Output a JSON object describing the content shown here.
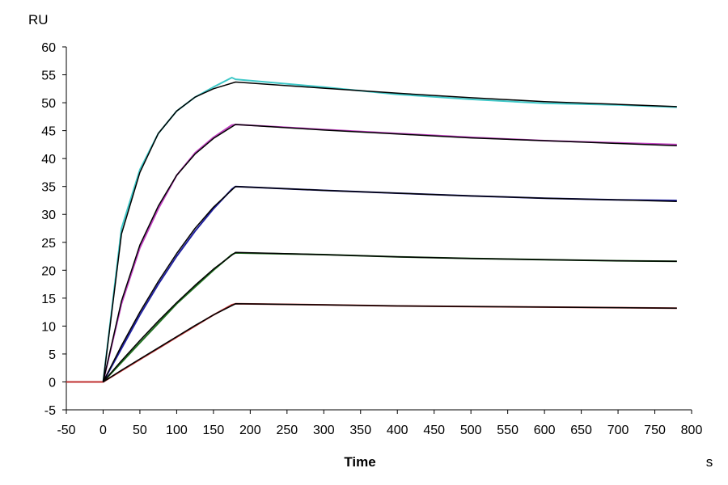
{
  "chart_data": {
    "type": "line",
    "title": "",
    "xlabel": "Time",
    "xunit": "s",
    "ylabel": "RU",
    "xlim": [
      -50,
      800
    ],
    "ylim": [
      -5,
      60
    ],
    "xticks": [
      -50,
      0,
      50,
      100,
      150,
      200,
      250,
      300,
      350,
      400,
      450,
      500,
      550,
      600,
      650,
      700,
      750,
      800
    ],
    "yticks": [
      -5,
      0,
      5,
      10,
      15,
      20,
      25,
      30,
      35,
      40,
      45,
      50,
      55,
      60
    ],
    "xtick_labels": [
      "-50",
      "0",
      "50",
      "100",
      "150",
      "200",
      "250",
      "300",
      "350",
      "400",
      "450",
      "500",
      "550",
      "600",
      "650",
      "700",
      "750",
      "800"
    ],
    "ytick_labels": [
      "-5",
      "0",
      "5",
      "10",
      "15",
      "20",
      "25",
      "30",
      "35",
      "40",
      "45",
      "50",
      "55",
      "60"
    ],
    "grid": false,
    "legend": "none",
    "series": [
      {
        "color": "#3fc8c8",
        "x": [
          -50,
          0,
          25,
          50,
          75,
          100,
          125,
          150,
          175,
          180,
          300,
          400,
          500,
          600,
          700,
          780
        ],
        "y": [
          0,
          0,
          27.5,
          38,
          44.5,
          48.5,
          51,
          52.8,
          54.5,
          54.2,
          52.8,
          51.5,
          50.6,
          49.9,
          49.6,
          49.2
        ]
      },
      {
        "color": "#c040c0",
        "x": [
          -50,
          0,
          25,
          50,
          75,
          100,
          125,
          150,
          175,
          180,
          300,
          400,
          500,
          600,
          700,
          780
        ],
        "y": [
          0,
          0,
          14,
          24,
          31,
          37,
          41,
          43.8,
          46,
          46.1,
          45.2,
          44.5,
          43.8,
          43.2,
          42.8,
          42.5
        ]
      },
      {
        "color": "#2020a0",
        "x": [
          -50,
          0,
          25,
          50,
          75,
          100,
          125,
          150,
          175,
          180,
          300,
          400,
          500,
          600,
          700,
          780
        ],
        "y": [
          0,
          0,
          6,
          12,
          17.5,
          22.5,
          27,
          31,
          34.5,
          35,
          34.3,
          33.8,
          33.3,
          32.9,
          32.6,
          32.5
        ]
      },
      {
        "color": "#207020",
        "x": [
          -50,
          0,
          25,
          50,
          75,
          100,
          125,
          150,
          175,
          180,
          300,
          400,
          500,
          600,
          700,
          780
        ],
        "y": [
          0,
          0,
          3.5,
          7,
          10.5,
          14,
          17,
          20,
          22.8,
          23.1,
          22.8,
          22.4,
          22.1,
          21.9,
          21.7,
          21.6
        ]
      },
      {
        "color": "#c03030",
        "x": [
          -50,
          0,
          25,
          50,
          75,
          100,
          125,
          150,
          175,
          180,
          300,
          400,
          500,
          600,
          700,
          780
        ],
        "y": [
          0,
          0,
          2,
          4,
          6,
          8,
          10,
          12,
          13.8,
          14,
          13.8,
          13.6,
          13.5,
          13.4,
          13.3,
          13.2
        ]
      }
    ],
    "fits": [
      {
        "color": "#000000",
        "x": [
          0,
          25,
          50,
          75,
          100,
          125,
          150,
          180,
          300,
          400,
          500,
          600,
          700,
          780
        ],
        "y": [
          0,
          26.5,
          37.5,
          44.5,
          48.5,
          51,
          52.5,
          53.7,
          52.6,
          51.7,
          50.9,
          50.2,
          49.7,
          49.3
        ]
      },
      {
        "color": "#000000",
        "x": [
          0,
          25,
          50,
          75,
          100,
          125,
          150,
          180,
          300,
          400,
          500,
          600,
          700,
          780
        ],
        "y": [
          0,
          14.5,
          24.5,
          31.5,
          37,
          40.8,
          43.6,
          46.1,
          45.1,
          44.4,
          43.7,
          43.2,
          42.7,
          42.3
        ]
      },
      {
        "color": "#000000",
        "x": [
          0,
          25,
          50,
          75,
          100,
          125,
          150,
          180,
          300,
          400,
          500,
          600,
          700,
          780
        ],
        "y": [
          0,
          6.5,
          12.5,
          18,
          23,
          27.5,
          31.3,
          35,
          34.3,
          33.8,
          33.3,
          32.9,
          32.6,
          32.3
        ]
      },
      {
        "color": "#000000",
        "x": [
          0,
          25,
          50,
          75,
          100,
          125,
          150,
          180,
          300,
          400,
          500,
          600,
          700,
          780
        ],
        "y": [
          0,
          3.8,
          7.4,
          10.9,
          14.2,
          17.3,
          20.2,
          23.2,
          22.8,
          22.4,
          22.1,
          21.9,
          21.7,
          21.6
        ]
      },
      {
        "color": "#000000",
        "x": [
          0,
          25,
          50,
          75,
          100,
          125,
          150,
          180,
          300,
          400,
          500,
          600,
          700,
          780
        ],
        "y": [
          0,
          2.1,
          4.1,
          6.1,
          8.1,
          10.1,
          12,
          14,
          13.8,
          13.6,
          13.5,
          13.4,
          13.3,
          13.2
        ]
      }
    ]
  }
}
